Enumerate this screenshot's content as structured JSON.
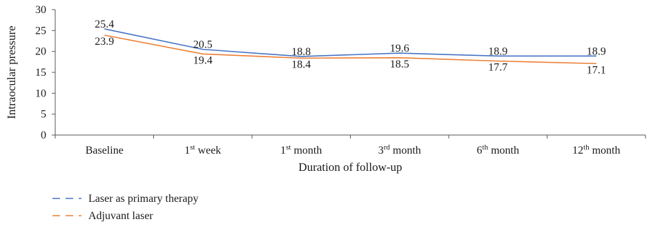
{
  "chart_data": {
    "type": "line",
    "title": "",
    "xlabel": "Duration of follow-up",
    "ylabel": "Intraocular pressure",
    "ylim": [
      0,
      30
    ],
    "yticks": [
      "0",
      "5",
      "10",
      "15",
      "20",
      "25",
      "30"
    ],
    "categories": [
      {
        "base": "Baseline",
        "sup": "",
        "tail": ""
      },
      {
        "base": "1",
        "sup": "st",
        "tail": " week"
      },
      {
        "base": "1",
        "sup": "st",
        "tail": " month"
      },
      {
        "base": "3",
        "sup": "rd",
        "tail": " month"
      },
      {
        "base": "6",
        "sup": "th",
        "tail": " month"
      },
      {
        "base": "12",
        "sup": "th",
        "tail": " month"
      }
    ],
    "series": [
      {
        "name": "Laser as primary therapy",
        "color": "#4472C4",
        "values": [
          25.4,
          20.5,
          18.8,
          19.6,
          18.9,
          18.9
        ],
        "labels": [
          "25.4",
          "20.5",
          "18.8",
          "19.6",
          "18.9",
          "18.9"
        ]
      },
      {
        "name": "Adjuvant laser",
        "color": "#ED7D31",
        "values": [
          23.9,
          19.4,
          18.4,
          18.5,
          17.7,
          17.1
        ],
        "labels": [
          "23.9",
          "19.4",
          "18.4",
          "18.5",
          "17.7",
          "17.1"
        ]
      }
    ],
    "grid": false,
    "legend_position": "bottom-left"
  }
}
